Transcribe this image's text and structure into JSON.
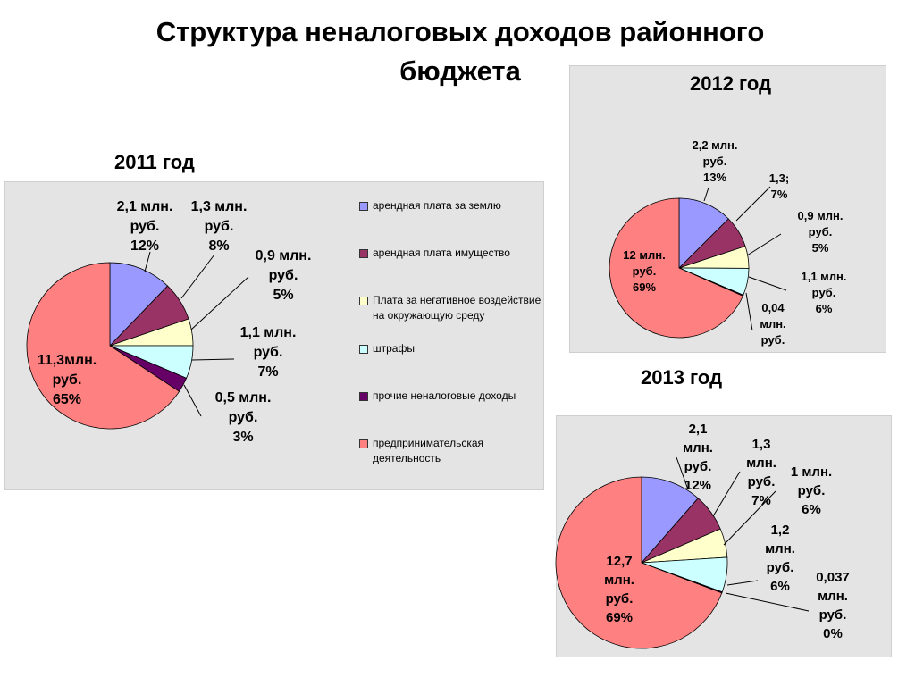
{
  "title_line1": "Структура неналоговых доходов районного",
  "title_line2": "бюджета",
  "legend": [
    {
      "label": "арендная плата за землю",
      "color": "#9999ff"
    },
    {
      "label": "арендная плата имущество",
      "color": "#993366"
    },
    {
      "label": "Плата за негативное воздействие на окружающую среду",
      "color": "#ffffcc"
    },
    {
      "label": "штрафы",
      "color": "#ccffff"
    },
    {
      "label": "прочие неналоговые доходы",
      "color": "#660066"
    },
    {
      "label": "предпринимательская деятельность",
      "color": "#ff8080"
    }
  ],
  "chart_data": [
    {
      "type": "pie",
      "title": "2011 год",
      "slices": [
        {
          "category": "арендная плата за землю",
          "value": 2.1,
          "percent": 12,
          "label": [
            "2,1 млн.",
            "руб.",
            "12%"
          ]
        },
        {
          "category": "арендная плата имущество",
          "value": 1.3,
          "percent": 8,
          "label": [
            "1,3 млн.",
            "руб.",
            "8%"
          ]
        },
        {
          "category": "Плата за негативное воздействие на окружающую среду",
          "value": 0.9,
          "percent": 5,
          "label": [
            "0,9 млн.",
            "руб.",
            "5%"
          ]
        },
        {
          "category": "штрафы",
          "value": 1.1,
          "percent": 7,
          "label": [
            "1,1 млн.",
            "руб.",
            "7%"
          ]
        },
        {
          "category": "прочие неналоговые доходы",
          "value": 0.5,
          "percent": 3,
          "label": [
            "0,5 млн.",
            "руб.",
            "3%"
          ]
        },
        {
          "category": "предпринимательская деятельность",
          "value": 11.3,
          "percent": 65,
          "label": [
            "11,3млн.",
            "руб.",
            "65%"
          ]
        }
      ],
      "legend_position": "right"
    },
    {
      "type": "pie",
      "title": "2012 год",
      "slices": [
        {
          "category": "арендная плата за землю",
          "value": 2.2,
          "percent": 13,
          "label": [
            "2,2 млн.",
            "руб.",
            "13%"
          ]
        },
        {
          "category": "арендная плата имущество",
          "value": 1.3,
          "percent": 7,
          "label": [
            "1,3;",
            "7%"
          ]
        },
        {
          "category": "Плата за негативное воздействие на окружающую среду",
          "value": 0.9,
          "percent": 5,
          "label": [
            "0,9 млн.",
            "руб.",
            "5%"
          ]
        },
        {
          "category": "штрафы",
          "value": 1.1,
          "percent": 6,
          "label": [
            "1,1 млн.",
            "руб.",
            "6%"
          ]
        },
        {
          "category": "прочие неналоговые доходы",
          "value": 0.04,
          "label": [
            "0,04",
            "млн.",
            "руб."
          ]
        },
        {
          "category": "предпринимательская деятельность",
          "value": 12,
          "percent": 69,
          "label": [
            "12 млн.",
            "руб.",
            "69%"
          ]
        }
      ]
    },
    {
      "type": "pie",
      "title": "2013 год",
      "slices": [
        {
          "category": "арендная плата за землю",
          "value": 2.1,
          "percent": 12,
          "label": [
            "2,1",
            "млн.",
            "руб.",
            "12%"
          ]
        },
        {
          "category": "арендная плата имущество",
          "value": 1.3,
          "percent": 7,
          "label": [
            "1,3",
            "млн.",
            "руб.",
            "7%"
          ]
        },
        {
          "category": "Плата за негативное воздействие на окружающую среду",
          "value": 1.0,
          "percent": 6,
          "label": [
            "1 млн.",
            "руб.",
            "6%"
          ]
        },
        {
          "category": "штрафы",
          "value": 1.2,
          "percent": 6,
          "label": [
            "1,2",
            "млн.",
            "руб.",
            "6%"
          ]
        },
        {
          "category": "прочие неналоговые доходы",
          "value": 0.037,
          "percent": 0,
          "label": [
            "0,037",
            "млн.",
            "руб.",
            "0%"
          ]
        },
        {
          "category": "предпринимательская деятельность",
          "value": 12.7,
          "percent": 69,
          "label": [
            "12,7",
            "млн.",
            "руб.",
            "69%"
          ]
        }
      ]
    }
  ]
}
